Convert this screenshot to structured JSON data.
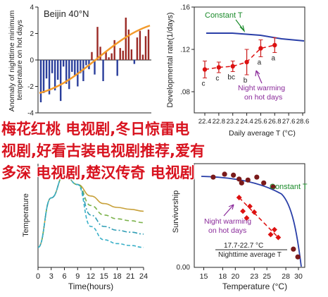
{
  "chart_data": [
    {
      "type": "bar",
      "panel": "top-left",
      "title": "Beijin 40°N",
      "ylabel": "Anomaly of nighttime minimum temperature on hot days",
      "ylim": [
        -4,
        4
      ],
      "yticks": [
        "4",
        "2",
        "0",
        "-2",
        "-4"
      ],
      "values": [
        -3.2,
        -2.5,
        -1.4,
        -2.6,
        -1.0,
        -2.3,
        -1.5,
        -3.1,
        -0.5,
        -1.8,
        -2.2,
        -0.9,
        -1.2,
        -2.0,
        -1.0,
        -1.6,
        -0.4,
        -0.7,
        0.6,
        -1.1,
        2.5,
        1.0,
        -1.6,
        0.6,
        0.2,
        0.5,
        1.5,
        -1.2,
        0.9,
        0.7,
        3.2,
        2.3,
        0.8,
        -0.3,
        1.7,
        2.2,
        0.4,
        1.8,
        2.3
      ],
      "trend": {
        "start": -2.5,
        "end": 2.6
      }
    },
    {
      "type": "scatter",
      "panel": "top-right",
      "ylabel": "Developmental rate(1/days)",
      "xlabel": "Daily average T (°C)",
      "ylim": [
        0.06,
        0.16
      ],
      "yticks": [
        ".16",
        ".12",
        ".08"
      ],
      "xticks": [
        "22.4",
        "22.8",
        "23.2",
        "24.4",
        "25.6",
        "26.8",
        "27.6",
        "28.6"
      ],
      "series": [
        {
          "name": "",
          "points": [
            {
              "x": 22.4,
              "y": 0.101,
              "label": "c",
              "err": 0.008
            },
            {
              "x": 22.8,
              "y": 0.103,
              "label": "c",
              "err": 0.005
            },
            {
              "x": 23.2,
              "y": 0.104,
              "label": "bc",
              "err": 0.005
            },
            {
              "x": 24.4,
              "y": 0.108,
              "label": "b",
              "err": 0.012
            },
            {
              "x": 25.6,
              "y": 0.121,
              "label": "a",
              "err": 0.008
            },
            {
              "x": 26.8,
              "y": 0.124,
              "label": "a",
              "err": 0.007
            }
          ]
        }
      ],
      "annotations": [
        "Constant T",
        "Night warming on hot days"
      ]
    },
    {
      "type": "line",
      "panel": "bottom-left",
      "ylabel": "Temperature",
      "xlabel": "Time(hours)",
      "xticks": [
        0,
        3,
        6,
        9,
        12,
        15,
        18,
        21,
        24
      ],
      "ylim": [
        0,
        1
      ],
      "series": [
        {
          "name": "",
          "values": [
            0.18,
            0.7,
            0.94,
            0.84,
            0.72,
            0.64,
            0.6,
            0.58,
            0.56
          ]
        },
        {
          "name": "",
          "values": [
            0.18,
            0.7,
            0.94,
            0.84,
            0.62,
            0.52,
            0.48,
            0.46,
            0.44
          ]
        },
        {
          "name": "",
          "values": [
            0.18,
            0.7,
            0.94,
            0.84,
            0.52,
            0.4,
            0.36,
            0.34,
            0.32
          ]
        },
        {
          "name": "",
          "values": [
            0.18,
            0.7,
            0.94,
            0.84,
            0.4,
            0.26,
            0.22,
            0.2,
            0.18
          ]
        }
      ]
    },
    {
      "type": "scatter",
      "panel": "bottom-right",
      "ylabel": "Survivorship",
      "xlabel": "Temperature (°C)",
      "xticks": [
        "15",
        "18",
        "20",
        "23",
        "25",
        "28",
        "30"
      ],
      "yticks": [
        "0.00"
      ],
      "ylim": [
        0,
        1
      ],
      "annotations": [
        "Constant T",
        "Night warming on hot days",
        "17.7-22.7 °C",
        "Nighttime average T"
      ],
      "series": [
        {
          "name": "Constant T",
          "points": [
            [
              16.5,
              0.92
            ],
            [
              18.3,
              0.95
            ],
            [
              19.7,
              0.94
            ],
            [
              20.6,
              0.9
            ],
            [
              21.0,
              0.86
            ],
            [
              22.0,
              0.89
            ],
            [
              23.4,
              0.92
            ],
            [
              24.5,
              0.86
            ],
            [
              26.0,
              0.82
            ],
            [
              29.2,
              0.18
            ],
            [
              29.9,
              0.1
            ]
          ]
        },
        {
          "name": "Night warming on hot days",
          "points": [
            [
              20.6,
              0.71
            ],
            [
              21.2,
              0.57
            ],
            [
              21.8,
              0.5
            ],
            [
              22.3,
              0.62
            ],
            [
              23.0,
              0.56
            ],
            [
              25.6,
              0.33
            ],
            [
              26.2,
              0.38
            ],
            [
              26.8,
              0.3
            ]
          ]
        }
      ]
    }
  ],
  "overlay_text": {
    "line1": "梅花红桃 电视剧,冬日惊雷电",
    "line2": "视剧,好看古装电视剧推荐,爱有",
    "line3": "多深 电视剧,楚汉传奇 电视剧"
  }
}
